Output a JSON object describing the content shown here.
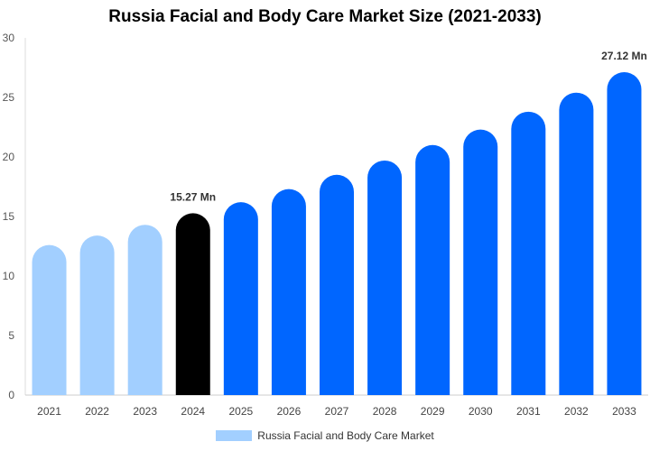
{
  "chart_data": {
    "type": "bar",
    "title": "Russia Facial and Body Care Market Size (2021-2033)",
    "categories": [
      "2021",
      "2022",
      "2023",
      "2024",
      "2025",
      "2026",
      "2027",
      "2028",
      "2029",
      "2030",
      "2031",
      "2032",
      "2033"
    ],
    "series": [
      {
        "name": "Russia Facial and Body Care Market",
        "values": [
          12.6,
          13.4,
          14.3,
          15.27,
          16.2,
          17.3,
          18.5,
          19.7,
          21.0,
          22.3,
          23.8,
          25.4,
          27.12
        ]
      }
    ],
    "data_labels": [
      {
        "category": "2024",
        "text": "15.27 Mn"
      },
      {
        "category": "2033",
        "text": "27.12 Mn"
      }
    ],
    "ylim": [
      0,
      30
    ],
    "yticks": [
      0,
      5,
      10,
      15,
      20,
      25,
      30
    ],
    "grid": false,
    "legend_position": "bottom",
    "colors": {
      "historical": "#a2cfff",
      "current": "#000000",
      "forecast": "#0066ff"
    },
    "color_groups": [
      "historical",
      "historical",
      "historical",
      "current",
      "forecast",
      "forecast",
      "forecast",
      "forecast",
      "forecast",
      "forecast",
      "forecast",
      "forecast",
      "forecast"
    ]
  }
}
